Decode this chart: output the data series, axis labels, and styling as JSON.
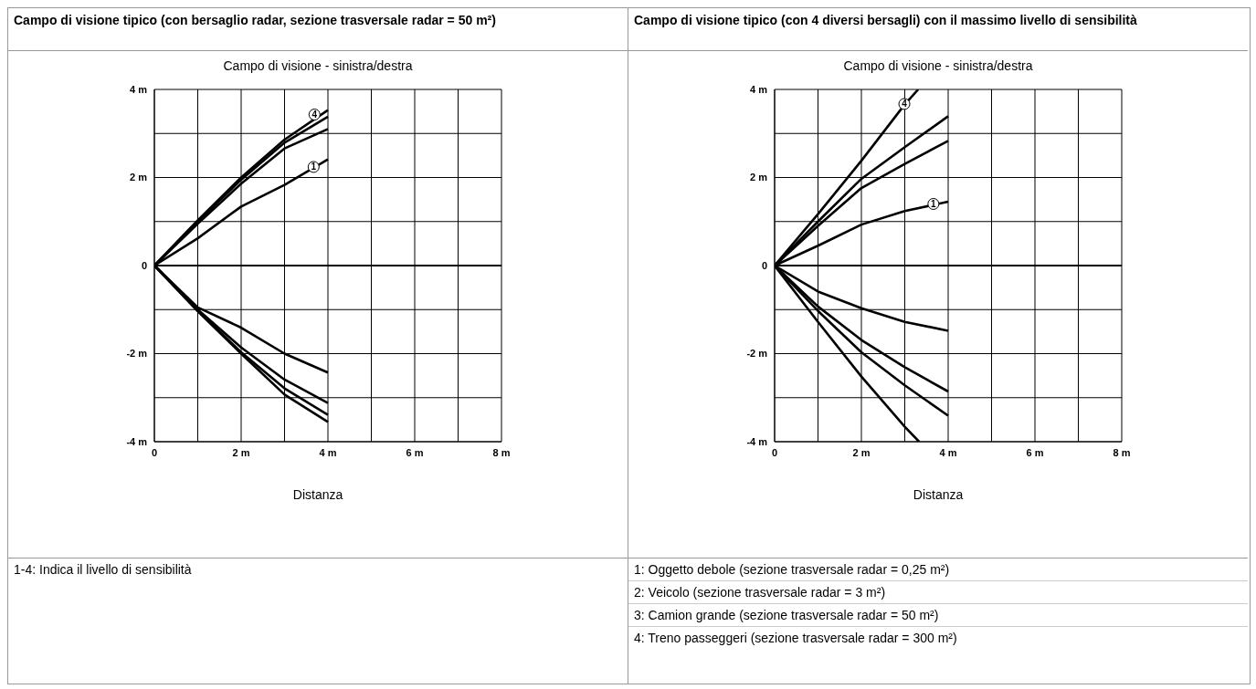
{
  "chart_data": [
    {
      "type": "line",
      "title": "Campo di visione tipico (con bersaglio radar, sezione trasversale radar = 50 m²)",
      "subtitle": "Campo di visione - sinistra/destra",
      "xlabel": "Distanza",
      "xlim": [
        0,
        8
      ],
      "xticks": [
        0,
        {
          "value": 1,
          "label": null
        },
        {
          "value": 2,
          "label": "2 m"
        },
        {
          "value": 3,
          "label": null
        },
        {
          "value": 4,
          "label": "4 m"
        },
        {
          "value": 5,
          "label": null
        },
        {
          "value": 6,
          "label": "6 m"
        },
        {
          "value": 7,
          "label": null
        },
        {
          "value": 8,
          "label": "8 m"
        }
      ],
      "ylim": [
        -4,
        4
      ],
      "yticks": [
        {
          "value": -4,
          "label": "-4 m"
        },
        {
          "value": -3,
          "label": null
        },
        {
          "value": -2,
          "label": "-2 m"
        },
        {
          "value": -1,
          "label": null
        },
        0,
        {
          "value": 1,
          "label": null
        },
        {
          "value": 2,
          "label": "2 m"
        },
        {
          "value": 3,
          "label": null
        },
        {
          "value": 4,
          "label": "4 m"
        }
      ],
      "grid": true,
      "line_style": "solid",
      "ref_lines": [
        {
          "axis": "y",
          "value": 0,
          "color": "#000000"
        }
      ],
      "series": [
        {
          "color": "#000000",
          "x": [
            0,
            1,
            2,
            3,
            4
          ],
          "values": [
            0,
            0.62,
            1.34,
            1.83,
            2.41
          ]
        },
        {
          "color": "#000000",
          "x": [
            0,
            1,
            2,
            3,
            4
          ],
          "values": [
            0,
            0.95,
            1.86,
            2.66,
            3.1
          ]
        },
        {
          "color": "#000000",
          "x": [
            0,
            1,
            2,
            3,
            4
          ],
          "values": [
            0,
            1.0,
            1.95,
            2.79,
            3.38
          ]
        },
        {
          "color": "#000000",
          "x": [
            0,
            1,
            2,
            3,
            4
          ],
          "values": [
            0,
            1.03,
            2.0,
            2.86,
            3.53
          ]
        },
        {
          "color": "#000000",
          "x": [
            0,
            1,
            2,
            3,
            4
          ],
          "values": [
            0,
            -0.95,
            -1.41,
            -2.0,
            -2.43
          ]
        },
        {
          "color": "#000000",
          "x": [
            0,
            1,
            2,
            3,
            4
          ],
          "values": [
            0,
            -1.0,
            -1.86,
            -2.59,
            -3.12
          ]
        },
        {
          "color": "#000000",
          "x": [
            0,
            1,
            2,
            3,
            4
          ],
          "values": [
            0,
            -1.02,
            -1.97,
            -2.79,
            -3.39
          ]
        },
        {
          "color": "#000000",
          "x": [
            0,
            1,
            2,
            3,
            4
          ],
          "values": [
            0,
            -1.04,
            -2.0,
            -2.93,
            -3.55
          ]
        }
      ],
      "annotations": [
        {
          "text": "4",
          "x": 3.69,
          "y": 3.43
        },
        {
          "text": "1",
          "x": 3.67,
          "y": 2.24
        },
        "1-4: Indica il livello di sensibilità"
      ]
    },
    {
      "type": "line",
      "title": "Campo di visione tipico (con 4 diversi bersagli) con il massimo livello di sensibilità",
      "subtitle": "Campo di visione - sinistra/destra",
      "xlabel": "Distanza",
      "xlim": [
        0,
        8
      ],
      "xticks": [
        0,
        {
          "value": 1,
          "label": null
        },
        {
          "value": 2,
          "label": "2 m"
        },
        {
          "value": 3,
          "label": null
        },
        {
          "value": 4,
          "label": "4 m"
        },
        {
          "value": 5,
          "label": null
        },
        {
          "value": 6,
          "label": "6 m"
        },
        {
          "value": 7,
          "label": null
        },
        {
          "value": 8,
          "label": "8 m"
        }
      ],
      "ylim": [
        -4,
        4
      ],
      "yticks": [
        {
          "value": -4,
          "label": "-4 m"
        },
        {
          "value": -3,
          "label": null
        },
        {
          "value": -2,
          "label": "-2 m"
        },
        {
          "value": -1,
          "label": null
        },
        0,
        {
          "value": 1,
          "label": null
        },
        {
          "value": 2,
          "label": "2 m"
        },
        {
          "value": 3,
          "label": null
        },
        {
          "value": 4,
          "label": "4 m"
        }
      ],
      "grid": true,
      "line_style": "solid",
      "ref_lines": [
        {
          "axis": "y",
          "value": 0,
          "color": "#000000"
        }
      ],
      "series": [
        {
          "color": "#000000",
          "x": [
            0,
            1,
            2,
            3,
            4
          ],
          "values": [
            0,
            0.45,
            0.93,
            1.24,
            1.45
          ]
        },
        {
          "color": "#000000",
          "x": [
            0,
            1,
            2,
            3,
            4
          ],
          "values": [
            0,
            0.9,
            1.76,
            2.31,
            2.83
          ]
        },
        {
          "color": "#000000",
          "x": [
            0,
            1,
            2,
            3,
            4
          ],
          "values": [
            0,
            1.0,
            1.97,
            2.69,
            3.39
          ]
        },
        {
          "color": "#000000",
          "x": [
            0,
            1,
            2,
            3,
            3.31
          ],
          "values": [
            0,
            1.17,
            2.38,
            3.66,
            4.0
          ]
        },
        {
          "color": "#000000",
          "x": [
            0,
            1,
            2,
            3,
            4
          ],
          "values": [
            0,
            -0.59,
            -0.97,
            -1.28,
            -1.48
          ]
        },
        {
          "color": "#000000",
          "x": [
            0,
            1,
            2,
            3,
            4
          ],
          "values": [
            0,
            -0.93,
            -1.69,
            -2.31,
            -2.86
          ]
        },
        {
          "color": "#000000",
          "x": [
            0,
            1,
            2,
            3,
            4
          ],
          "values": [
            0,
            -1.03,
            -1.97,
            -2.72,
            -3.41
          ]
        },
        {
          "color": "#000000",
          "x": [
            0,
            1,
            2,
            3,
            3.33
          ],
          "values": [
            0,
            -1.28,
            -2.52,
            -3.66,
            -4.0
          ]
        }
      ],
      "annotations": [
        {
          "text": "4",
          "x": 2.99,
          "y": 3.67
        },
        {
          "text": "1",
          "x": 3.66,
          "y": 1.4
        },
        "1: Oggetto debole (sezione trasversale radar = 0,25 m²)",
        "2: Veicolo (sezione trasversale radar = 3 m²)",
        "3: Camion grande (sezione trasversale radar = 50 m²)",
        "4: Treno passeggeri (sezione trasversale radar = 300 m²)"
      ]
    }
  ]
}
